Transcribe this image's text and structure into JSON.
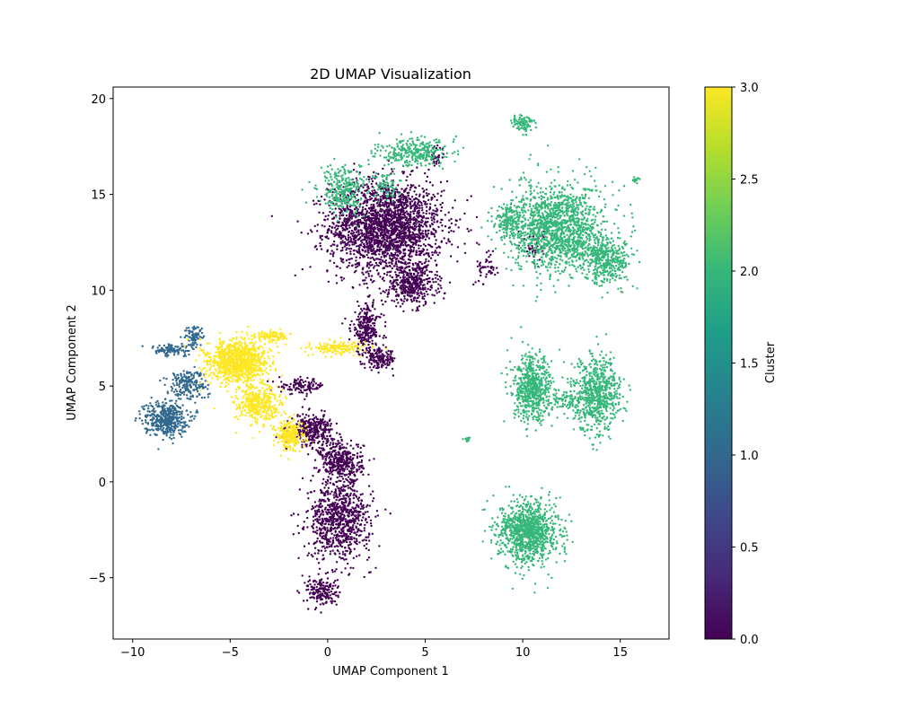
{
  "chart_data": {
    "type": "scatter",
    "title": "2D UMAP Visualization",
    "xlabel": "UMAP Component 1",
    "ylabel": "UMAP Component 2",
    "xlim": [
      -11,
      17.5
    ],
    "ylim": [
      -8.2,
      20.6
    ],
    "x_ticks": [
      -10,
      -5,
      0,
      5,
      10,
      15
    ],
    "x_tick_labels": [
      "−10",
      "−5",
      "0",
      "5",
      "10",
      "15"
    ],
    "y_ticks": [
      -5,
      0,
      5,
      10,
      15,
      20
    ],
    "y_tick_labels": [
      "−5",
      "0",
      "5",
      "10",
      "15",
      "20"
    ],
    "grid": false,
    "colormap": "viridis",
    "colorbar": {
      "label": "Cluster",
      "range": [
        0,
        3
      ],
      "ticks": [
        0,
        0.5,
        1,
        1.5,
        2,
        2.5,
        3
      ],
      "tick_labels": [
        "0.0",
        "0.5",
        "1.0",
        "1.5",
        "2.0",
        "2.5",
        "3.0"
      ],
      "colors": [
        "#440154",
        "#482878",
        "#3e4989",
        "#31688e",
        "#26828e",
        "#1f9e89",
        "#35b779",
        "#6ece58",
        "#b5de2b",
        "#fde725"
      ]
    },
    "cluster_colors": {
      "0": "#440154",
      "1": "#31688e",
      "2": "#35b779",
      "3": "#fde725"
    },
    "series": [
      {
        "cluster": 0,
        "regions": [
          {
            "center": [
              3.0,
              13.3
            ],
            "spread": [
              2.9,
              2.4
            ],
            "count": 2200
          },
          {
            "center": [
              4.3,
              10.3
            ],
            "spread": [
              1.3,
              1.1
            ],
            "count": 400
          },
          {
            "center": [
              2.0,
              8.0
            ],
            "spread": [
              0.8,
              1.3
            ],
            "count": 260
          },
          {
            "center": [
              2.7,
              6.4
            ],
            "spread": [
              0.8,
              0.5
            ],
            "count": 160
          },
          {
            "center": [
              -1.3,
              5.0
            ],
            "spread": [
              1.2,
              0.4
            ],
            "count": 110
          },
          {
            "center": [
              -0.8,
              2.7
            ],
            "spread": [
              1.1,
              0.8
            ],
            "count": 320
          },
          {
            "center": [
              0.7,
              1.0
            ],
            "spread": [
              1.1,
              1.1
            ],
            "count": 380
          },
          {
            "center": [
              0.6,
              -2.0
            ],
            "spread": [
              1.6,
              2.0
            ],
            "count": 800
          },
          {
            "center": [
              -0.3,
              -5.7
            ],
            "spread": [
              0.8,
              0.8
            ],
            "count": 180
          },
          {
            "center": [
              8.2,
              11.3
            ],
            "spread": [
              0.6,
              1.0
            ],
            "count": 50
          },
          {
            "center": [
              10.6,
              12.2
            ],
            "spread": [
              0.5,
              0.8
            ],
            "count": 40
          },
          {
            "center": [
              5.6,
              17.0
            ],
            "spread": [
              0.4,
              0.8
            ],
            "count": 40
          }
        ]
      },
      {
        "cluster": 1,
        "regions": [
          {
            "center": [
              -8.3,
              3.3
            ],
            "spread": [
              1.1,
              0.9
            ],
            "count": 420
          },
          {
            "center": [
              -7.2,
              5.1
            ],
            "spread": [
              1.0,
              0.8
            ],
            "count": 210
          },
          {
            "center": [
              -8.0,
              6.9
            ],
            "spread": [
              1.2,
              0.3
            ],
            "count": 110
          },
          {
            "center": [
              -6.8,
              7.6
            ],
            "spread": [
              0.5,
              0.5
            ],
            "count": 80
          }
        ]
      },
      {
        "cluster": 2,
        "regions": [
          {
            "center": [
              11.8,
              13.2
            ],
            "spread": [
              2.4,
              2.3
            ],
            "count": 1500
          },
          {
            "center": [
              14.4,
              11.6
            ],
            "spread": [
              1.2,
              1.2
            ],
            "count": 380
          },
          {
            "center": [
              9.3,
              13.6
            ],
            "spread": [
              0.8,
              0.8
            ],
            "count": 150
          },
          {
            "center": [
              10.0,
              18.7
            ],
            "spread": [
              0.6,
              0.5
            ],
            "count": 90
          },
          {
            "center": [
              15.8,
              15.8
            ],
            "spread": [
              0.15,
              0.15
            ],
            "count": 16
          },
          {
            "center": [
              10.5,
              4.8
            ],
            "spread": [
              1.0,
              1.7
            ],
            "count": 620
          },
          {
            "center": [
              13.8,
              4.6
            ],
            "spread": [
              1.2,
              1.9
            ],
            "count": 680
          },
          {
            "center": [
              12.2,
              4.3
            ],
            "spread": [
              0.8,
              0.6
            ],
            "count": 80
          },
          {
            "center": [
              7.2,
              2.2
            ],
            "spread": [
              0.2,
              0.15
            ],
            "count": 14
          },
          {
            "center": [
              10.3,
              -2.6
            ],
            "spread": [
              1.5,
              1.6
            ],
            "count": 1050
          },
          {
            "center": [
              4.4,
              17.2
            ],
            "spread": [
              1.8,
              0.7
            ],
            "count": 300
          },
          {
            "center": [
              0.8,
              15.2
            ],
            "spread": [
              1.2,
              1.2
            ],
            "count": 280
          },
          {
            "center": [
              3.0,
              15.5
            ],
            "spread": [
              0.6,
              0.8
            ],
            "count": 70
          }
        ]
      },
      {
        "cluster": 3,
        "regions": [
          {
            "center": [
              -4.6,
              6.3
            ],
            "spread": [
              1.5,
              1.1
            ],
            "count": 1100
          },
          {
            "center": [
              -3.6,
              4.0
            ],
            "spread": [
              1.2,
              1.0
            ],
            "count": 400
          },
          {
            "center": [
              -1.9,
              2.4
            ],
            "spread": [
              0.7,
              0.8
            ],
            "count": 260
          },
          {
            "center": [
              0.5,
              7.0
            ],
            "spread": [
              1.5,
              0.35
            ],
            "count": 160
          },
          {
            "center": [
              -2.8,
              7.6
            ],
            "spread": [
              0.8,
              0.3
            ],
            "count": 100
          }
        ]
      }
    ]
  }
}
